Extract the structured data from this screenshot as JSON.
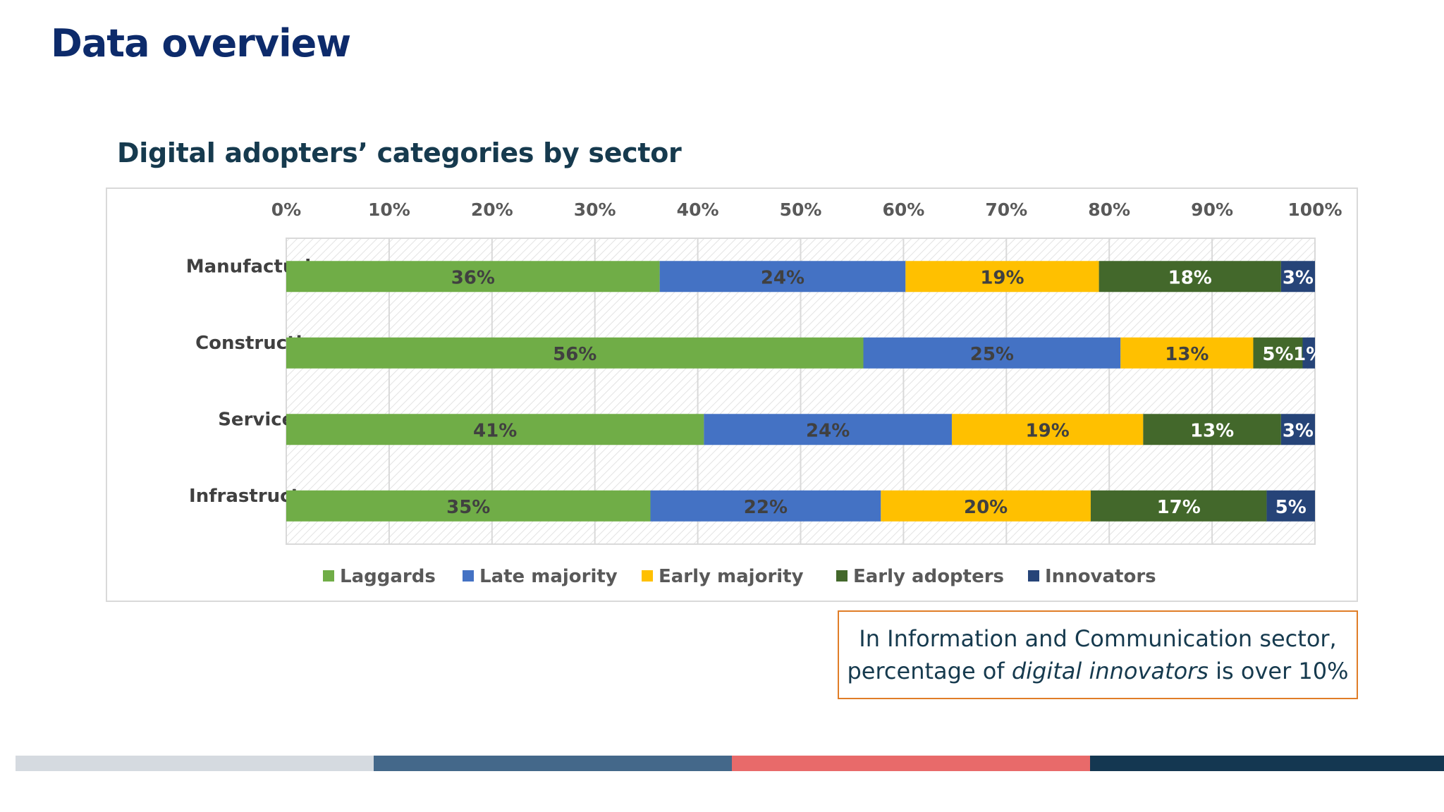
{
  "header": {
    "title": "Data overview"
  },
  "chart_data": {
    "type": "bar",
    "orientation": "horizontal",
    "stacked": true,
    "percent_stacked": true,
    "title": "Digital adopters’ categories by sector",
    "xlabel": "",
    "ylabel": "",
    "categories": [
      "Manufacturing",
      "Construction",
      "Services",
      "Infrastructure"
    ],
    "xlim": [
      0,
      100
    ],
    "x_ticks": [
      "0%",
      "10%",
      "20%",
      "30%",
      "40%",
      "50%",
      "60%",
      "70%",
      "80%",
      "90%",
      "100%"
    ],
    "x_axis_position": "top",
    "grid": true,
    "legend_position": "bottom",
    "series": [
      {
        "name": "Laggards",
        "color": "#70ad47",
        "values": [
          36.3,
          56.1,
          40.6,
          35.4
        ],
        "labels": [
          "36%",
          "56%",
          "41%",
          "35%"
        ]
      },
      {
        "name": "Late majority",
        "color": "#4472c4",
        "values": [
          23.9,
          25.0,
          24.1,
          22.4
        ],
        "labels": [
          "24%",
          "25%",
          "24%",
          "22%"
        ]
      },
      {
        "name": "Early majority",
        "color": "#ffc000",
        "values": [
          18.8,
          12.9,
          18.6,
          20.4
        ],
        "labels": [
          "19%",
          "13%",
          "19%",
          "20%"
        ]
      },
      {
        "name": "Early adopters",
        "color": "#43682b",
        "values": [
          17.7,
          4.8,
          13.4,
          17.1
        ],
        "labels": [
          "18%",
          "5%",
          "13%",
          "17%"
        ]
      },
      {
        "name": "Innovators",
        "color": "#264478",
        "values": [
          3.3,
          1.2,
          3.3,
          4.7
        ],
        "labels": [
          "3%",
          "1%",
          "3%",
          "5%"
        ]
      }
    ]
  },
  "callout": {
    "line1": "In Information and Communication sector,",
    "line2_prefix": "percentage of ",
    "line2_em": "digital innovators",
    "line2_suffix": " is over 10%"
  },
  "footer": {
    "colors": [
      "#d5dae0",
      "#44688a",
      "#e86a6a",
      "#143751"
    ]
  }
}
